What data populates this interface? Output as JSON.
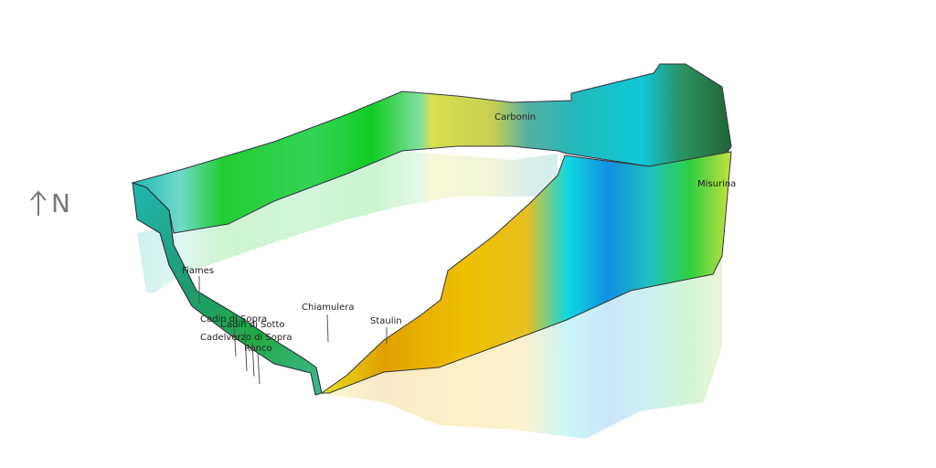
{
  "compass": {
    "label": "N"
  },
  "places": [
    {
      "name": "Carbonin"
    },
    {
      "name": "Misurina"
    },
    {
      "name": "Fiames"
    },
    {
      "name": "Cadin di Sopra"
    },
    {
      "name": "Cadin di Sotto"
    },
    {
      "name": "Cadelverzo di Sopra"
    },
    {
      "name": "Ronco"
    },
    {
      "name": "Chiamulera"
    },
    {
      "name": "Staulin"
    }
  ]
}
